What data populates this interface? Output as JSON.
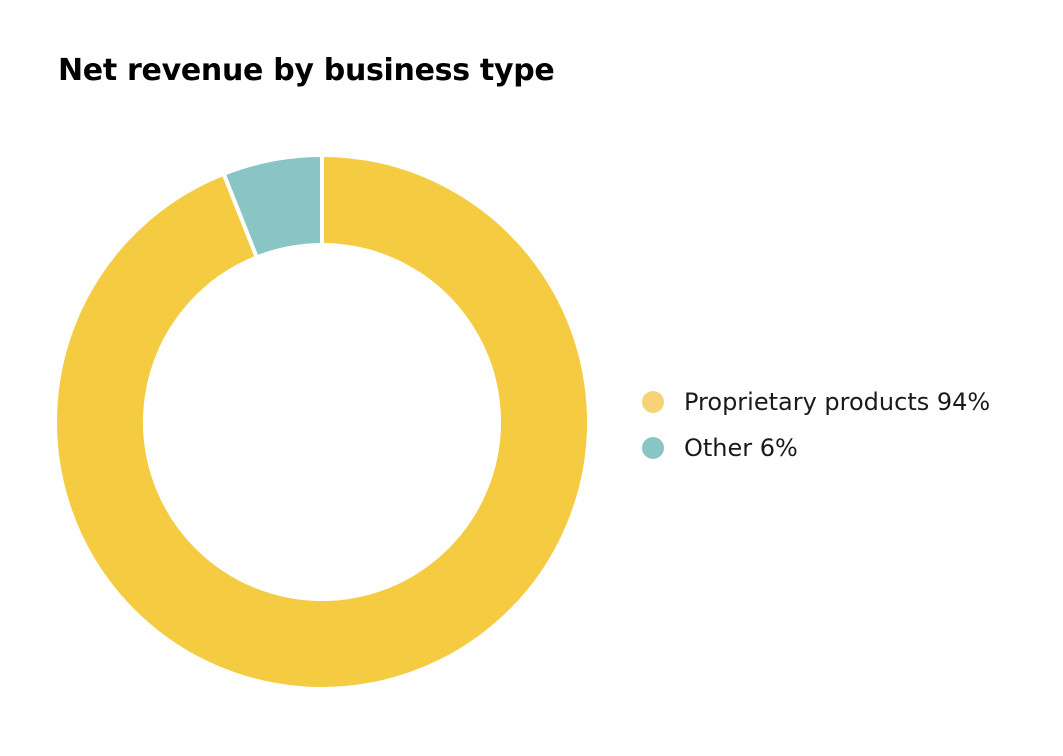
{
  "chart_data": {
    "type": "pie",
    "variant": "donut",
    "title": "Net revenue by business type",
    "categories": [
      "Proprietary products",
      "Other"
    ],
    "values": [
      94,
      6
    ],
    "unit": "%",
    "colors": [
      "#F4CB41",
      "#88C5C4"
    ],
    "legend_colors": [
      "#F6D378",
      "#88C5C4"
    ],
    "legend": {
      "placement": "right",
      "items": [
        {
          "label": "Proprietary products 94%"
        },
        {
          "label": "Other 6%"
        }
      ]
    }
  }
}
